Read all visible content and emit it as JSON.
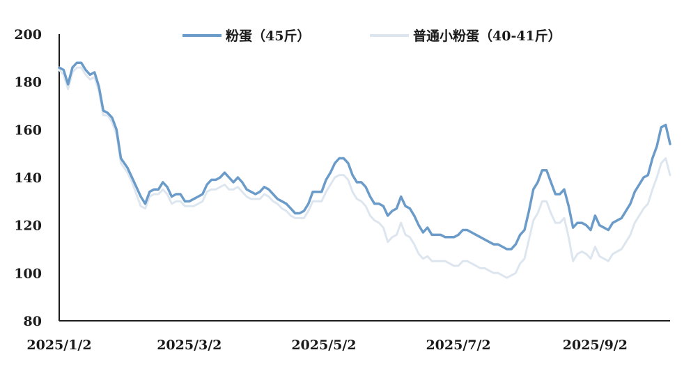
{
  "chart_data": {
    "type": "line",
    "title": "",
    "xlabel": "",
    "ylabel": "",
    "ylim": [
      80,
      200
    ],
    "yticks": [
      "80",
      "100",
      "120",
      "140",
      "160",
      "180",
      "200"
    ],
    "xticks": [
      "2025/1/2",
      "2025/3/2",
      "2025/5/2",
      "2025/7/2",
      "2025/9/2"
    ],
    "legend_position": "top",
    "grid": false,
    "series": [
      {
        "name": "粉蛋（45斤）",
        "color": "#6b9bc8",
        "points": [
          [
            "2025/1/2",
            186
          ],
          [
            "2025/1/4",
            185
          ],
          [
            "2025/1/6",
            179
          ],
          [
            "2025/1/8",
            186
          ],
          [
            "2025/1/10",
            188
          ],
          [
            "2025/1/12",
            188
          ],
          [
            "2025/1/14",
            185
          ],
          [
            "2025/1/16",
            183
          ],
          [
            "2025/1/18",
            184
          ],
          [
            "2025/1/20",
            178
          ],
          [
            "2025/1/22",
            168
          ],
          [
            "2025/1/24",
            167
          ],
          [
            "2025/1/26",
            165
          ],
          [
            "2025/1/28",
            160
          ],
          [
            "2025/1/30",
            148
          ],
          [
            "2025/2/2",
            144
          ],
          [
            "2025/2/4",
            140
          ],
          [
            "2025/2/6",
            136
          ],
          [
            "2025/2/8",
            132
          ],
          [
            "2025/2/10",
            129
          ],
          [
            "2025/2/12",
            134
          ],
          [
            "2025/2/14",
            135
          ],
          [
            "2025/2/16",
            135
          ],
          [
            "2025/2/18",
            138
          ],
          [
            "2025/2/20",
            136
          ],
          [
            "2025/2/22",
            132
          ],
          [
            "2025/2/24",
            133
          ],
          [
            "2025/2/26",
            133
          ],
          [
            "2025/2/28",
            130
          ],
          [
            "2025/3/2",
            130
          ],
          [
            "2025/3/4",
            131
          ],
          [
            "2025/3/6",
            132
          ],
          [
            "2025/3/8",
            133
          ],
          [
            "2025/3/10",
            137
          ],
          [
            "2025/3/12",
            139
          ],
          [
            "2025/3/14",
            139
          ],
          [
            "2025/3/16",
            140
          ],
          [
            "2025/3/18",
            142
          ],
          [
            "2025/3/20",
            140
          ],
          [
            "2025/3/22",
            138
          ],
          [
            "2025/3/24",
            140
          ],
          [
            "2025/3/26",
            138
          ],
          [
            "2025/3/28",
            135
          ],
          [
            "2025/3/30",
            134
          ],
          [
            "2025/4/1",
            133
          ],
          [
            "2025/4/3",
            134
          ],
          [
            "2025/4/5",
            136
          ],
          [
            "2025/4/7",
            135
          ],
          [
            "2025/4/9",
            133
          ],
          [
            "2025/4/11",
            131
          ],
          [
            "2025/4/13",
            130
          ],
          [
            "2025/4/15",
            129
          ],
          [
            "2025/4/17",
            127
          ],
          [
            "2025/4/19",
            125
          ],
          [
            "2025/4/21",
            125
          ],
          [
            "2025/4/23",
            126
          ],
          [
            "2025/4/25",
            129
          ],
          [
            "2025/4/27",
            134
          ],
          [
            "2025/4/29",
            134
          ],
          [
            "2025/5/1",
            134
          ],
          [
            "2025/5/3",
            139
          ],
          [
            "2025/5/5",
            142
          ],
          [
            "2025/5/7",
            146
          ],
          [
            "2025/5/9",
            148
          ],
          [
            "2025/5/11",
            148
          ],
          [
            "2025/5/13",
            146
          ],
          [
            "2025/5/15",
            141
          ],
          [
            "2025/5/17",
            138
          ],
          [
            "2025/5/19",
            138
          ],
          [
            "2025/5/21",
            136
          ],
          [
            "2025/5/23",
            132
          ],
          [
            "2025/5/25",
            129
          ],
          [
            "2025/5/27",
            129
          ],
          [
            "2025/5/29",
            128
          ],
          [
            "2025/5/31",
            124
          ],
          [
            "2025/6/2",
            126
          ],
          [
            "2025/6/4",
            127
          ],
          [
            "2025/6/6",
            132
          ],
          [
            "2025/6/8",
            128
          ],
          [
            "2025/6/10",
            127
          ],
          [
            "2025/6/12",
            124
          ],
          [
            "2025/6/14",
            120
          ],
          [
            "2025/6/16",
            117
          ],
          [
            "2025/6/18",
            119
          ],
          [
            "2025/6/20",
            116
          ],
          [
            "2025/6/22",
            116
          ],
          [
            "2025/6/24",
            116
          ],
          [
            "2025/6/26",
            115
          ],
          [
            "2025/6/28",
            115
          ],
          [
            "2025/6/30",
            115
          ],
          [
            "2025/7/2",
            116
          ],
          [
            "2025/7/4",
            118
          ],
          [
            "2025/7/6",
            118
          ],
          [
            "2025/7/8",
            117
          ],
          [
            "2025/7/10",
            116
          ],
          [
            "2025/7/12",
            115
          ],
          [
            "2025/7/14",
            114
          ],
          [
            "2025/7/16",
            113
          ],
          [
            "2025/7/18",
            112
          ],
          [
            "2025/7/20",
            112
          ],
          [
            "2025/7/22",
            111
          ],
          [
            "2025/7/24",
            110
          ],
          [
            "2025/7/26",
            110
          ],
          [
            "2025/7/28",
            112
          ],
          [
            "2025/7/30",
            116
          ],
          [
            "2025/8/1",
            118
          ],
          [
            "2025/8/3",
            126
          ],
          [
            "2025/8/5",
            135
          ],
          [
            "2025/8/7",
            138
          ],
          [
            "2025/8/9",
            143
          ],
          [
            "2025/8/11",
            143
          ],
          [
            "2025/8/13",
            138
          ],
          [
            "2025/8/15",
            133
          ],
          [
            "2025/8/17",
            133
          ],
          [
            "2025/8/19",
            135
          ],
          [
            "2025/8/21",
            128
          ],
          [
            "2025/8/23",
            119
          ],
          [
            "2025/8/25",
            121
          ],
          [
            "2025/8/27",
            121
          ],
          [
            "2025/8/29",
            120
          ],
          [
            "2025/8/31",
            118
          ],
          [
            "2025/9/2",
            124
          ],
          [
            "2025/9/4",
            120
          ],
          [
            "2025/9/6",
            119
          ],
          [
            "2025/9/8",
            118
          ],
          [
            "2025/9/10",
            121
          ],
          [
            "2025/9/12",
            122
          ],
          [
            "2025/9/14",
            123
          ],
          [
            "2025/9/16",
            126
          ],
          [
            "2025/9/18",
            129
          ],
          [
            "2025/9/20",
            134
          ],
          [
            "2025/9/22",
            137
          ],
          [
            "2025/9/24",
            140
          ],
          [
            "2025/9/26",
            141
          ],
          [
            "2025/9/28",
            148
          ],
          [
            "2025/9/30",
            153
          ],
          [
            "2025/10/2",
            161
          ],
          [
            "2025/10/4",
            162
          ],
          [
            "2025/10/6",
            154
          ]
        ]
      },
      {
        "name": "普通小粉蛋（40-41斤）",
        "color": "#dde6ef",
        "points": [
          [
            "2025/1/2",
            185
          ],
          [
            "2025/1/4",
            183
          ],
          [
            "2025/1/6",
            177
          ],
          [
            "2025/1/8",
            184
          ],
          [
            "2025/1/10",
            186
          ],
          [
            "2025/1/12",
            186
          ],
          [
            "2025/1/14",
            183
          ],
          [
            "2025/1/16",
            181
          ],
          [
            "2025/1/18",
            182
          ],
          [
            "2025/1/20",
            176
          ],
          [
            "2025/1/22",
            166
          ],
          [
            "2025/1/24",
            166
          ],
          [
            "2025/1/26",
            163
          ],
          [
            "2025/1/28",
            158
          ],
          [
            "2025/1/30",
            146
          ],
          [
            "2025/2/2",
            142
          ],
          [
            "2025/2/4",
            138
          ],
          [
            "2025/2/6",
            133
          ],
          [
            "2025/2/8",
            128
          ],
          [
            "2025/2/10",
            127
          ],
          [
            "2025/2/12",
            132
          ],
          [
            "2025/2/14",
            133
          ],
          [
            "2025/2/16",
            133
          ],
          [
            "2025/2/18",
            135
          ],
          [
            "2025/2/20",
            133
          ],
          [
            "2025/2/22",
            129
          ],
          [
            "2025/2/24",
            130
          ],
          [
            "2025/2/26",
            130
          ],
          [
            "2025/2/28",
            128
          ],
          [
            "2025/3/2",
            128
          ],
          [
            "2025/3/4",
            128
          ],
          [
            "2025/3/6",
            129
          ],
          [
            "2025/3/8",
            130
          ],
          [
            "2025/3/10",
            134
          ],
          [
            "2025/3/12",
            135
          ],
          [
            "2025/3/14",
            135
          ],
          [
            "2025/3/16",
            136
          ],
          [
            "2025/3/18",
            137
          ],
          [
            "2025/3/20",
            135
          ],
          [
            "2025/3/22",
            135
          ],
          [
            "2025/3/24",
            136
          ],
          [
            "2025/3/26",
            134
          ],
          [
            "2025/3/28",
            132
          ],
          [
            "2025/3/30",
            131
          ],
          [
            "2025/4/1",
            131
          ],
          [
            "2025/4/3",
            131
          ],
          [
            "2025/4/5",
            133
          ],
          [
            "2025/4/7",
            132
          ],
          [
            "2025/4/9",
            130
          ],
          [
            "2025/4/11",
            129
          ],
          [
            "2025/4/13",
            127
          ],
          [
            "2025/4/15",
            126
          ],
          [
            "2025/4/17",
            124
          ],
          [
            "2025/4/19",
            123
          ],
          [
            "2025/4/21",
            123
          ],
          [
            "2025/4/23",
            123
          ],
          [
            "2025/4/25",
            126
          ],
          [
            "2025/4/27",
            130
          ],
          [
            "2025/4/29",
            130
          ],
          [
            "2025/5/1",
            130
          ],
          [
            "2025/5/3",
            134
          ],
          [
            "2025/5/5",
            137
          ],
          [
            "2025/5/7",
            140
          ],
          [
            "2025/5/9",
            141
          ],
          [
            "2025/5/11",
            141
          ],
          [
            "2025/5/13",
            139
          ],
          [
            "2025/5/15",
            134
          ],
          [
            "2025/5/17",
            131
          ],
          [
            "2025/5/19",
            130
          ],
          [
            "2025/5/21",
            128
          ],
          [
            "2025/5/23",
            124
          ],
          [
            "2025/5/25",
            122
          ],
          [
            "2025/5/27",
            121
          ],
          [
            "2025/5/29",
            119
          ],
          [
            "2025/5/31",
            113
          ],
          [
            "2025/6/2",
            115
          ],
          [
            "2025/6/4",
            116
          ],
          [
            "2025/6/6",
            121
          ],
          [
            "2025/6/8",
            116
          ],
          [
            "2025/6/10",
            115
          ],
          [
            "2025/6/12",
            112
          ],
          [
            "2025/6/14",
            108
          ],
          [
            "2025/6/16",
            106
          ],
          [
            "2025/6/18",
            107
          ],
          [
            "2025/6/20",
            105
          ],
          [
            "2025/6/22",
            105
          ],
          [
            "2025/6/24",
            105
          ],
          [
            "2025/6/26",
            105
          ],
          [
            "2025/6/28",
            104
          ],
          [
            "2025/6/30",
            103
          ],
          [
            "2025/7/2",
            103
          ],
          [
            "2025/7/4",
            105
          ],
          [
            "2025/7/6",
            105
          ],
          [
            "2025/7/8",
            104
          ],
          [
            "2025/7/10",
            103
          ],
          [
            "2025/7/12",
            102
          ],
          [
            "2025/7/14",
            102
          ],
          [
            "2025/7/16",
            101
          ],
          [
            "2025/7/18",
            100
          ],
          [
            "2025/7/20",
            100
          ],
          [
            "2025/7/22",
            99
          ],
          [
            "2025/7/24",
            98
          ],
          [
            "2025/7/26",
            99
          ],
          [
            "2025/7/28",
            100
          ],
          [
            "2025/7/30",
            104
          ],
          [
            "2025/8/1",
            106
          ],
          [
            "2025/8/3",
            114
          ],
          [
            "2025/8/5",
            122
          ],
          [
            "2025/8/7",
            125
          ],
          [
            "2025/8/9",
            130
          ],
          [
            "2025/8/11",
            130
          ],
          [
            "2025/8/13",
            125
          ],
          [
            "2025/8/15",
            121
          ],
          [
            "2025/8/17",
            121
          ],
          [
            "2025/8/19",
            123
          ],
          [
            "2025/8/21",
            115
          ],
          [
            "2025/8/23",
            105
          ],
          [
            "2025/8/25",
            108
          ],
          [
            "2025/8/27",
            109
          ],
          [
            "2025/8/29",
            108
          ],
          [
            "2025/8/31",
            106
          ],
          [
            "2025/9/2",
            111
          ],
          [
            "2025/9/4",
            107
          ],
          [
            "2025/9/6",
            106
          ],
          [
            "2025/9/8",
            105
          ],
          [
            "2025/9/10",
            108
          ],
          [
            "2025/9/12",
            109
          ],
          [
            "2025/9/14",
            110
          ],
          [
            "2025/9/16",
            113
          ],
          [
            "2025/9/18",
            116
          ],
          [
            "2025/9/20",
            121
          ],
          [
            "2025/9/22",
            124
          ],
          [
            "2025/9/24",
            127
          ],
          [
            "2025/9/26",
            129
          ],
          [
            "2025/9/28",
            135
          ],
          [
            "2025/9/30",
            140
          ],
          [
            "2025/10/2",
            146
          ],
          [
            "2025/10/4",
            148
          ],
          [
            "2025/10/6",
            141
          ]
        ]
      }
    ]
  }
}
